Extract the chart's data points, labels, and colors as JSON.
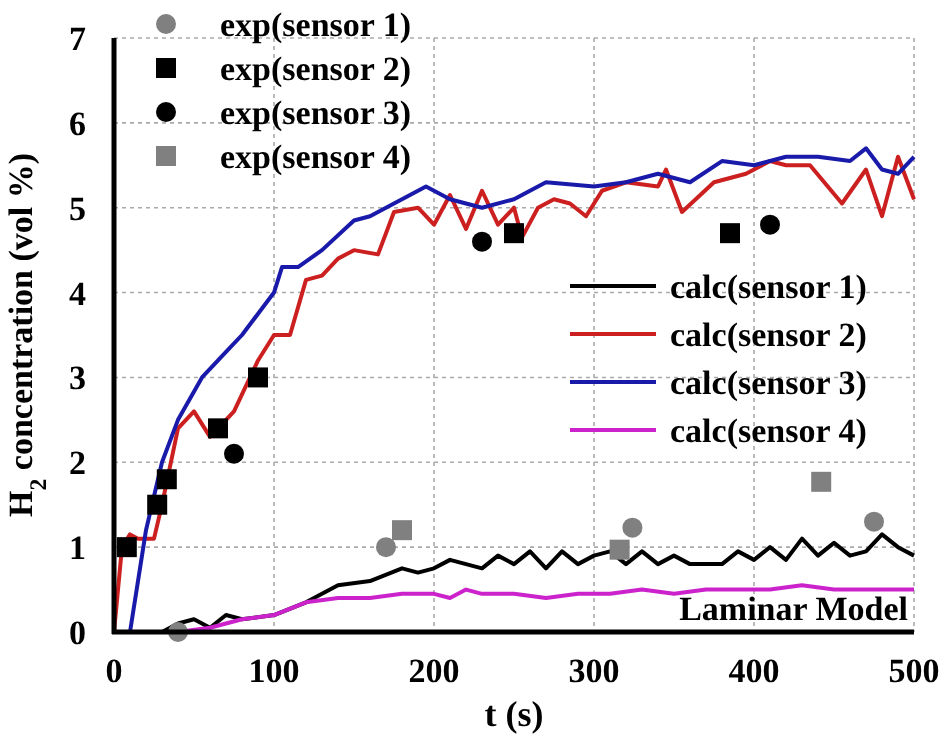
{
  "chart_data": {
    "type": "line",
    "xlabel": "t (s)",
    "ylabel": "H$_{2}$ concentration (vol %)",
    "xlim": [
      0,
      500
    ],
    "ylim": [
      0,
      7
    ],
    "xticks": [
      0,
      100,
      200,
      300,
      400,
      500
    ],
    "yticks": [
      0,
      1,
      2,
      3,
      4,
      5,
      6,
      7
    ],
    "grid": true,
    "legend": "top left",
    "annotations": [
      "Laminar Model"
    ],
    "series": [
      {
        "name": "exp(sensor 1)",
        "type": "scatter",
        "marker": "circle",
        "color": "#808080",
        "x": [
          40,
          170,
          324,
          475
        ],
        "values": [
          0,
          1.0,
          1.23,
          1.3
        ]
      },
      {
        "name": "exp(sensor 2)",
        "type": "scatter",
        "marker": "square",
        "color": "#000000",
        "x": [
          8,
          27,
          33,
          65,
          90,
          250,
          385
        ],
        "values": [
          1.0,
          1.5,
          1.8,
          2.4,
          3.0,
          4.7,
          4.7
        ]
      },
      {
        "name": "exp(sensor 3)",
        "type": "scatter",
        "marker": "circle",
        "color": "#000000",
        "x": [
          75,
          230,
          410
        ],
        "values": [
          2.1,
          4.6,
          4.8
        ]
      },
      {
        "name": "exp(sensor 4)",
        "type": "scatter",
        "marker": "square",
        "color": "#808080",
        "x": [
          180,
          316,
          442
        ],
        "values": [
          1.2,
          0.97,
          1.77
        ]
      },
      {
        "name": "calc(sensor 1)",
        "color": "#000000",
        "x": [
          0,
          30,
          40,
          50,
          60,
          70,
          80,
          100,
          120,
          140,
          160,
          180,
          190,
          200,
          210,
          220,
          230,
          240,
          250,
          260,
          270,
          280,
          290,
          300,
          310,
          320,
          330,
          340,
          350,
          360,
          380,
          390,
          400,
          410,
          420,
          430,
          440,
          450,
          460,
          470,
          480,
          490,
          500
        ],
        "values": [
          0,
          0,
          0.1,
          0.15,
          0.05,
          0.2,
          0.15,
          0.2,
          0.35,
          0.55,
          0.6,
          0.75,
          0.7,
          0.75,
          0.85,
          0.8,
          0.75,
          0.9,
          0.8,
          0.95,
          0.75,
          0.95,
          0.8,
          0.9,
          0.95,
          0.8,
          0.95,
          0.8,
          0.9,
          0.8,
          0.8,
          0.95,
          0.85,
          1.0,
          0.85,
          1.1,
          0.9,
          1.05,
          0.9,
          0.95,
          1.15,
          1.0,
          0.9
        ]
      },
      {
        "name": "calc(sensor 2)",
        "color": "#cc2020",
        "x": [
          0,
          5,
          10,
          15,
          25,
          30,
          40,
          50,
          60,
          75,
          85,
          90,
          100,
          110,
          120,
          130,
          140,
          150,
          165,
          175,
          190,
          200,
          210,
          220,
          230,
          240,
          250,
          255,
          265,
          275,
          285,
          295,
          305,
          320,
          340,
          345,
          355,
          375,
          395,
          410,
          420,
          435,
          455,
          470,
          480,
          490,
          500
        ],
        "values": [
          0,
          1.0,
          1.15,
          1.1,
          1.1,
          1.5,
          2.4,
          2.6,
          2.3,
          2.6,
          3.0,
          3.2,
          3.5,
          3.5,
          4.15,
          4.2,
          4.4,
          4.5,
          4.45,
          4.95,
          5.0,
          4.8,
          5.15,
          4.75,
          5.2,
          4.8,
          5.0,
          4.65,
          5.0,
          5.1,
          5.05,
          4.9,
          5.2,
          5.3,
          5.25,
          5.45,
          4.95,
          5.3,
          5.4,
          5.55,
          5.5,
          5.5,
          5.05,
          5.45,
          4.9,
          5.6,
          5.1
        ]
      },
      {
        "name": "calc(sensor 3)",
        "color": "#1a1aaa",
        "x": [
          0,
          10,
          20,
          30,
          40,
          55,
          70,
          80,
          100,
          105,
          115,
          130,
          150,
          160,
          180,
          195,
          210,
          230,
          250,
          270,
          300,
          320,
          340,
          360,
          380,
          400,
          420,
          440,
          460,
          470,
          480,
          490,
          500
        ],
        "values": [
          0,
          0,
          1.2,
          2.0,
          2.5,
          3.0,
          3.3,
          3.5,
          4.0,
          4.3,
          4.3,
          4.5,
          4.85,
          4.9,
          5.1,
          5.25,
          5.1,
          5.0,
          5.1,
          5.3,
          5.25,
          5.3,
          5.4,
          5.3,
          5.55,
          5.5,
          5.6,
          5.6,
          5.55,
          5.7,
          5.45,
          5.4,
          5.6
        ]
      },
      {
        "name": "calc(sensor 4)",
        "color": "#cc22cc",
        "x": [
          0,
          40,
          60,
          80,
          100,
          120,
          140,
          160,
          180,
          200,
          210,
          220,
          230,
          250,
          270,
          290,
          310,
          330,
          350,
          370,
          390,
          410,
          430,
          450,
          470,
          500
        ],
        "values": [
          0,
          0,
          0.05,
          0.15,
          0.2,
          0.35,
          0.4,
          0.4,
          0.45,
          0.45,
          0.4,
          0.5,
          0.45,
          0.45,
          0.4,
          0.45,
          0.45,
          0.5,
          0.45,
          0.5,
          0.5,
          0.5,
          0.55,
          0.5,
          0.5,
          0.5
        ]
      }
    ]
  }
}
